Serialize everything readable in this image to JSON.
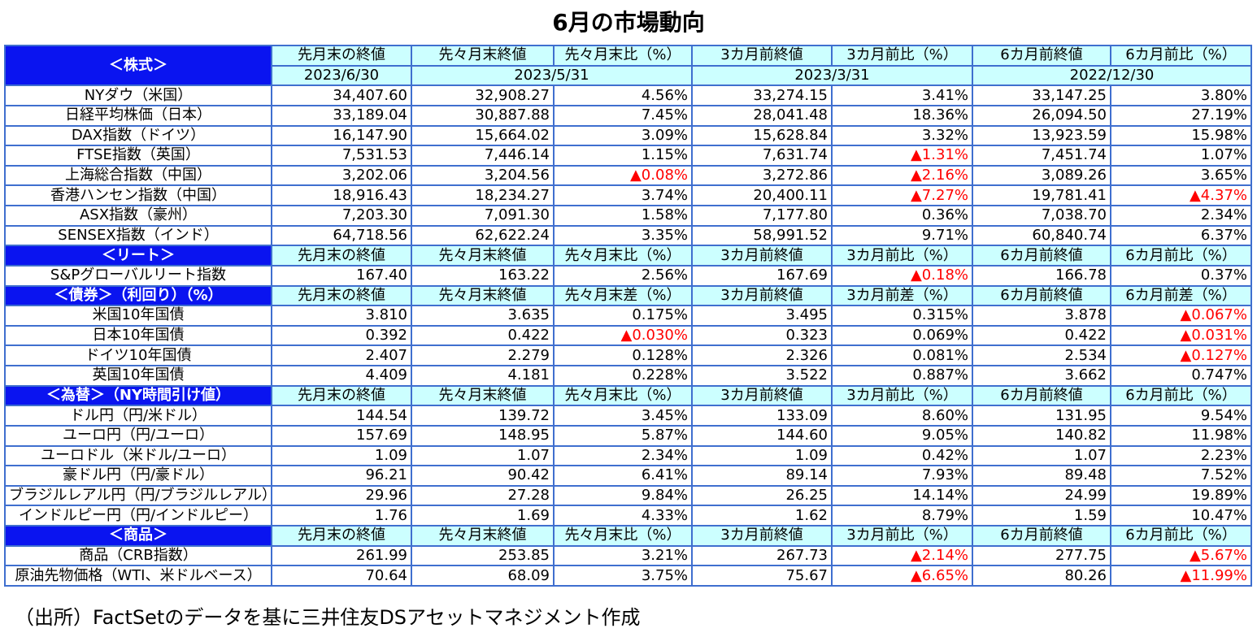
{
  "title": "6月の市場動向",
  "sections": [
    {
      "header": "＜株式＞",
      "columns": [
        "先月末の終値",
        "先々月末終値",
        "先々月末比（%）",
        "3カ月前終値",
        "3カ月前比（%）",
        "6カ月前終値",
        "6カ月前比（%）"
      ],
      "dates": [
        "2023/6/30",
        "2023/5/31",
        "2023/3/31",
        "2022/12/30"
      ],
      "rows": [
        {
          "label": "NYダウ（米国）",
          "cells": [
            "34,407.60",
            "32,908.27",
            "4.56%",
            "33,274.15",
            "3.41%",
            "33,147.25",
            "3.80%"
          ],
          "red": []
        },
        {
          "label": "日経平均株価（日本）",
          "cells": [
            "33,189.04",
            "30,887.88",
            "7.45%",
            "28,041.48",
            "18.36%",
            "26,094.50",
            "27.19%"
          ],
          "red": []
        },
        {
          "label": "DAX指数（ドイツ）",
          "cells": [
            "16,147.90",
            "15,664.02",
            "3.09%",
            "15,628.84",
            "3.32%",
            "13,923.59",
            "15.98%"
          ],
          "red": []
        },
        {
          "label": "FTSE指数（英国）",
          "cells": [
            "7,531.53",
            "7,446.14",
            "1.15%",
            "7,631.74",
            "▲1.31%",
            "7,451.74",
            "1.07%"
          ],
          "red": [
            4
          ]
        },
        {
          "label": "上海総合指数（中国）",
          "cells": [
            "3,202.06",
            "3,204.56",
            "▲0.08%",
            "3,272.86",
            "▲2.16%",
            "3,089.26",
            "3.65%"
          ],
          "red": [
            2,
            4
          ]
        },
        {
          "label": "香港ハンセン指数（中国）",
          "cells": [
            "18,916.43",
            "18,234.27",
            "3.74%",
            "20,400.11",
            "▲7.27%",
            "19,781.41",
            "▲4.37%"
          ],
          "red": [
            4,
            6
          ]
        },
        {
          "label": "ASX指数（豪州）",
          "cells": [
            "7,203.30",
            "7,091.30",
            "1.58%",
            "7,177.80",
            "0.36%",
            "7,038.70",
            "2.34%"
          ],
          "red": []
        },
        {
          "label": "SENSEX指数（インド）",
          "cells": [
            "64,718.56",
            "62,622.24",
            "3.35%",
            "58,991.52",
            "9.71%",
            "60,840.74",
            "6.37%"
          ],
          "red": []
        }
      ]
    },
    {
      "header": "＜リート＞",
      "columns": [
        "先月末の終値",
        "先々月末終値",
        "先々月末比（%）",
        "3カ月前終値",
        "3カ月前比（%）",
        "6カ月前終値",
        "6カ月前比（%）"
      ],
      "rows": [
        {
          "label": "S&Pグローバルリート指数",
          "cells": [
            "167.40",
            "163.22",
            "2.56%",
            "167.69",
            "▲0.18%",
            "166.78",
            "0.37%"
          ],
          "red": [
            4
          ]
        }
      ]
    },
    {
      "header": "＜債券＞（利回り）（%）",
      "columns": [
        "先月末の終値",
        "先々月末終値",
        "先々月末差（%）",
        "3カ月前終値",
        "3カ月前差（%）",
        "6カ月前終値",
        "6カ月前差（%）"
      ],
      "rows": [
        {
          "label": "米国10年国債",
          "cells": [
            "3.810",
            "3.635",
            "0.175%",
            "3.495",
            "0.315%",
            "3.878",
            "▲0.067%"
          ],
          "red": [
            6
          ]
        },
        {
          "label": "日本10年国債",
          "cells": [
            "0.392",
            "0.422",
            "▲0.030%",
            "0.323",
            "0.069%",
            "0.422",
            "▲0.031%"
          ],
          "red": [
            2,
            6
          ]
        },
        {
          "label": "ドイツ10年国債",
          "cells": [
            "2.407",
            "2.279",
            "0.128%",
            "2.326",
            "0.081%",
            "2.534",
            "▲0.127%"
          ],
          "red": [
            6
          ]
        },
        {
          "label": "英国10年国債",
          "cells": [
            "4.409",
            "4.181",
            "0.228%",
            "3.522",
            "0.887%",
            "3.662",
            "0.747%"
          ],
          "red": []
        }
      ]
    },
    {
      "header": "＜為替＞（NY時間引け値）",
      "columns": [
        "先月末の終値",
        "先々月末終値",
        "先々月末比（%）",
        "3カ月前終値",
        "3カ月前比（%）",
        "6カ月前終値",
        "6カ月前比（%）"
      ],
      "rows": [
        {
          "label": "ドル円（円/米ドル）",
          "cells": [
            "144.54",
            "139.72",
            "3.45%",
            "133.09",
            "8.60%",
            "131.95",
            "9.54%"
          ],
          "red": []
        },
        {
          "label": "ユーロ円（円/ユーロ）",
          "cells": [
            "157.69",
            "148.95",
            "5.87%",
            "144.60",
            "9.05%",
            "140.82",
            "11.98%"
          ],
          "red": []
        },
        {
          "label": "ユーロドル（米ドル/ユーロ）",
          "cells": [
            "1.09",
            "1.07",
            "2.34%",
            "1.09",
            "0.42%",
            "1.07",
            "2.23%"
          ],
          "red": []
        },
        {
          "label": "豪ドル円（円/豪ドル）",
          "cells": [
            "96.21",
            "90.42",
            "6.41%",
            "89.14",
            "7.93%",
            "89.48",
            "7.52%"
          ],
          "red": []
        },
        {
          "label": "ブラジルレアル円（円/ブラジルレアル）",
          "cells": [
            "29.96",
            "27.28",
            "9.84%",
            "26.25",
            "14.14%",
            "24.99",
            "19.89%"
          ],
          "red": []
        },
        {
          "label": "インドルピー円（円/インドルピー）",
          "cells": [
            "1.76",
            "1.69",
            "4.33%",
            "1.62",
            "8.79%",
            "1.59",
            "10.47%"
          ],
          "red": []
        }
      ]
    },
    {
      "header": "＜商品＞",
      "columns": [
        "先月末の終値",
        "先々月末終値",
        "先々月末比（%）",
        "3カ月前終値",
        "3カ月前比（%）",
        "6カ月前終値",
        "6カ月前比（%）"
      ],
      "rows": [
        {
          "label": "商品（CRB指数）",
          "cells": [
            "261.99",
            "253.85",
            "3.21%",
            "267.73",
            "▲2.14%",
            "277.75",
            "▲5.67%"
          ],
          "red": [
            4,
            6
          ]
        },
        {
          "label": "原油先物価格（WTI、米ドルベース）",
          "cells": [
            "70.64",
            "68.09",
            "3.75%",
            "75.67",
            "▲6.65%",
            "80.26",
            "▲11.99%"
          ],
          "red": [
            4,
            6
          ]
        }
      ]
    }
  ],
  "footer": "（出所）FactSetのデータを基に三井住友DSアセットマネジメント作成"
}
